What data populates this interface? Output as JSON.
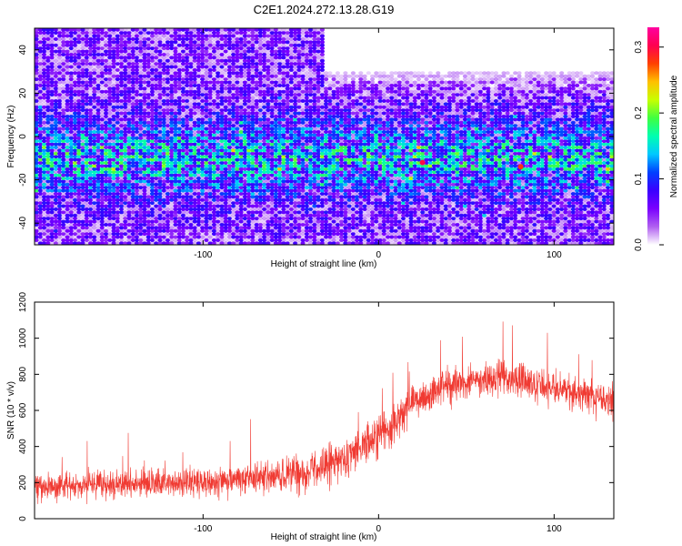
{
  "title": "C2E1.2024.272.13.28.G19",
  "chart_data": [
    {
      "type": "heatmap",
      "name": "spectrogram",
      "xlabel": "Height of straight line (km)",
      "ylabel": "Frequency (Hz)",
      "xlim": [
        -196,
        134
      ],
      "ylim": [
        -50,
        50
      ],
      "xticks": [
        -100,
        0,
        100
      ],
      "yticks": [
        -40,
        -20,
        0,
        20,
        40
      ],
      "colorbar": {
        "label": "Normalized spectral amplitude",
        "range": [
          0,
          0.33
        ],
        "ticks": [
          0,
          0.1,
          0.2,
          0.3
        ],
        "tick_labels": [
          "0.0",
          "0.1",
          "0.2",
          "0.3"
        ],
        "colormap": [
          "#ffffff",
          "#b060f0",
          "#7a00ff",
          "#3a00ff",
          "#0040ff",
          "#00c8ff",
          "#00ffb0",
          "#40ff40",
          "#c8ff00",
          "#ffc000",
          "#ff4000",
          "#ff0050",
          "#ff00a0"
        ]
      },
      "description_values": {
        "strong_band_center_hz": -10,
        "hot_spots": [
          {
            "x": 25,
            "y": -12,
            "amplitude": 0.3
          },
          {
            "x": 81,
            "y": -14,
            "amplitude": 0.28
          },
          {
            "x": -55,
            "y": -2,
            "amplitude": 0.14
          }
        ]
      }
    },
    {
      "type": "line",
      "name": "snr",
      "xlabel": "Height of straight line (km)",
      "ylabel": "SNR (10 * v/v)",
      "xlim": [
        -196,
        134
      ],
      "ylim": [
        0,
        1200
      ],
      "xticks": [
        -100,
        0,
        100
      ],
      "yticks": [
        0,
        200,
        400,
        600,
        800,
        1000,
        1200
      ],
      "color": "#f03a32",
      "envelope": {
        "x": [
          -196,
          -150,
          -100,
          -60,
          -40,
          -20,
          0,
          10,
          20,
          30,
          40,
          55,
          70,
          85,
          100,
          115,
          134
        ],
        "mean": [
          180,
          190,
          200,
          230,
          260,
          330,
          450,
          550,
          640,
          700,
          740,
          770,
          780,
          760,
          720,
          690,
          650
        ],
        "spread": [
          140,
          140,
          150,
          170,
          190,
          220,
          240,
          220,
          200,
          180,
          180,
          180,
          180,
          180,
          170,
          170,
          170
        ]
      }
    }
  ]
}
